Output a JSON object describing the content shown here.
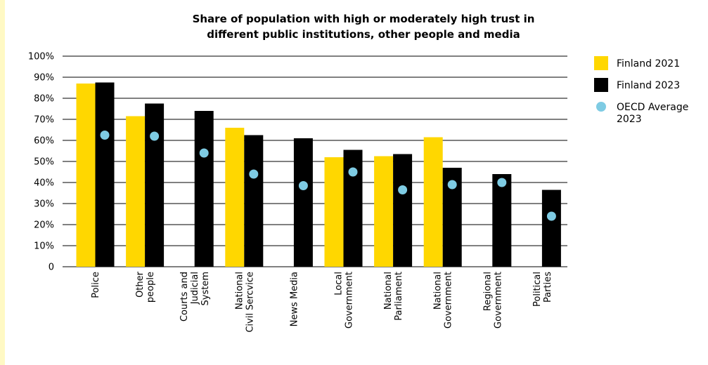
{
  "chart_data": {
    "type": "bar",
    "title_lines": [
      "Share of population with high or moderately high trust in",
      "different public institutions, other people and media"
    ],
    "xlabel": "",
    "ylabel": "",
    "ylim": [
      0,
      100
    ],
    "y_ticks": [
      "0",
      "10%",
      "20%",
      "30%",
      "40%",
      "50%",
      "60%",
      "70%",
      "80%",
      "90%",
      "100%"
    ],
    "grid": true,
    "legend_position": "right",
    "categories": [
      {
        "lines": [
          "Police"
        ]
      },
      {
        "lines": [
          "Other",
          "people"
        ]
      },
      {
        "lines": [
          "Courts and",
          "Judicial",
          "System"
        ]
      },
      {
        "lines": [
          "National",
          "Civil Sercvice"
        ]
      },
      {
        "lines": [
          "News Media"
        ]
      },
      {
        "lines": [
          "Local",
          "Government"
        ]
      },
      {
        "lines": [
          "National",
          "Parliament"
        ]
      },
      {
        "lines": [
          "National",
          "Government"
        ]
      },
      {
        "lines": [
          "Regional",
          "Government"
        ]
      },
      {
        "lines": [
          "Political",
          "Parties"
        ]
      }
    ],
    "series": [
      {
        "name": "Finland 2021",
        "kind": "bar",
        "color": "#ffd700",
        "values": [
          87,
          71.5,
          null,
          66,
          null,
          52,
          52.5,
          61.5,
          null,
          null
        ]
      },
      {
        "name": "Finland 2023",
        "kind": "bar",
        "color": "#000000",
        "values": [
          87.5,
          77.5,
          74,
          62.5,
          61,
          55.5,
          53.5,
          47,
          44,
          36.5
        ]
      },
      {
        "name_lines": [
          "OECD Average",
          "2023"
        ],
        "kind": "point",
        "color": "#7ecbe3",
        "values": [
          62.5,
          62,
          54,
          44,
          38.5,
          45,
          36.5,
          39,
          40,
          24
        ]
      }
    ]
  }
}
